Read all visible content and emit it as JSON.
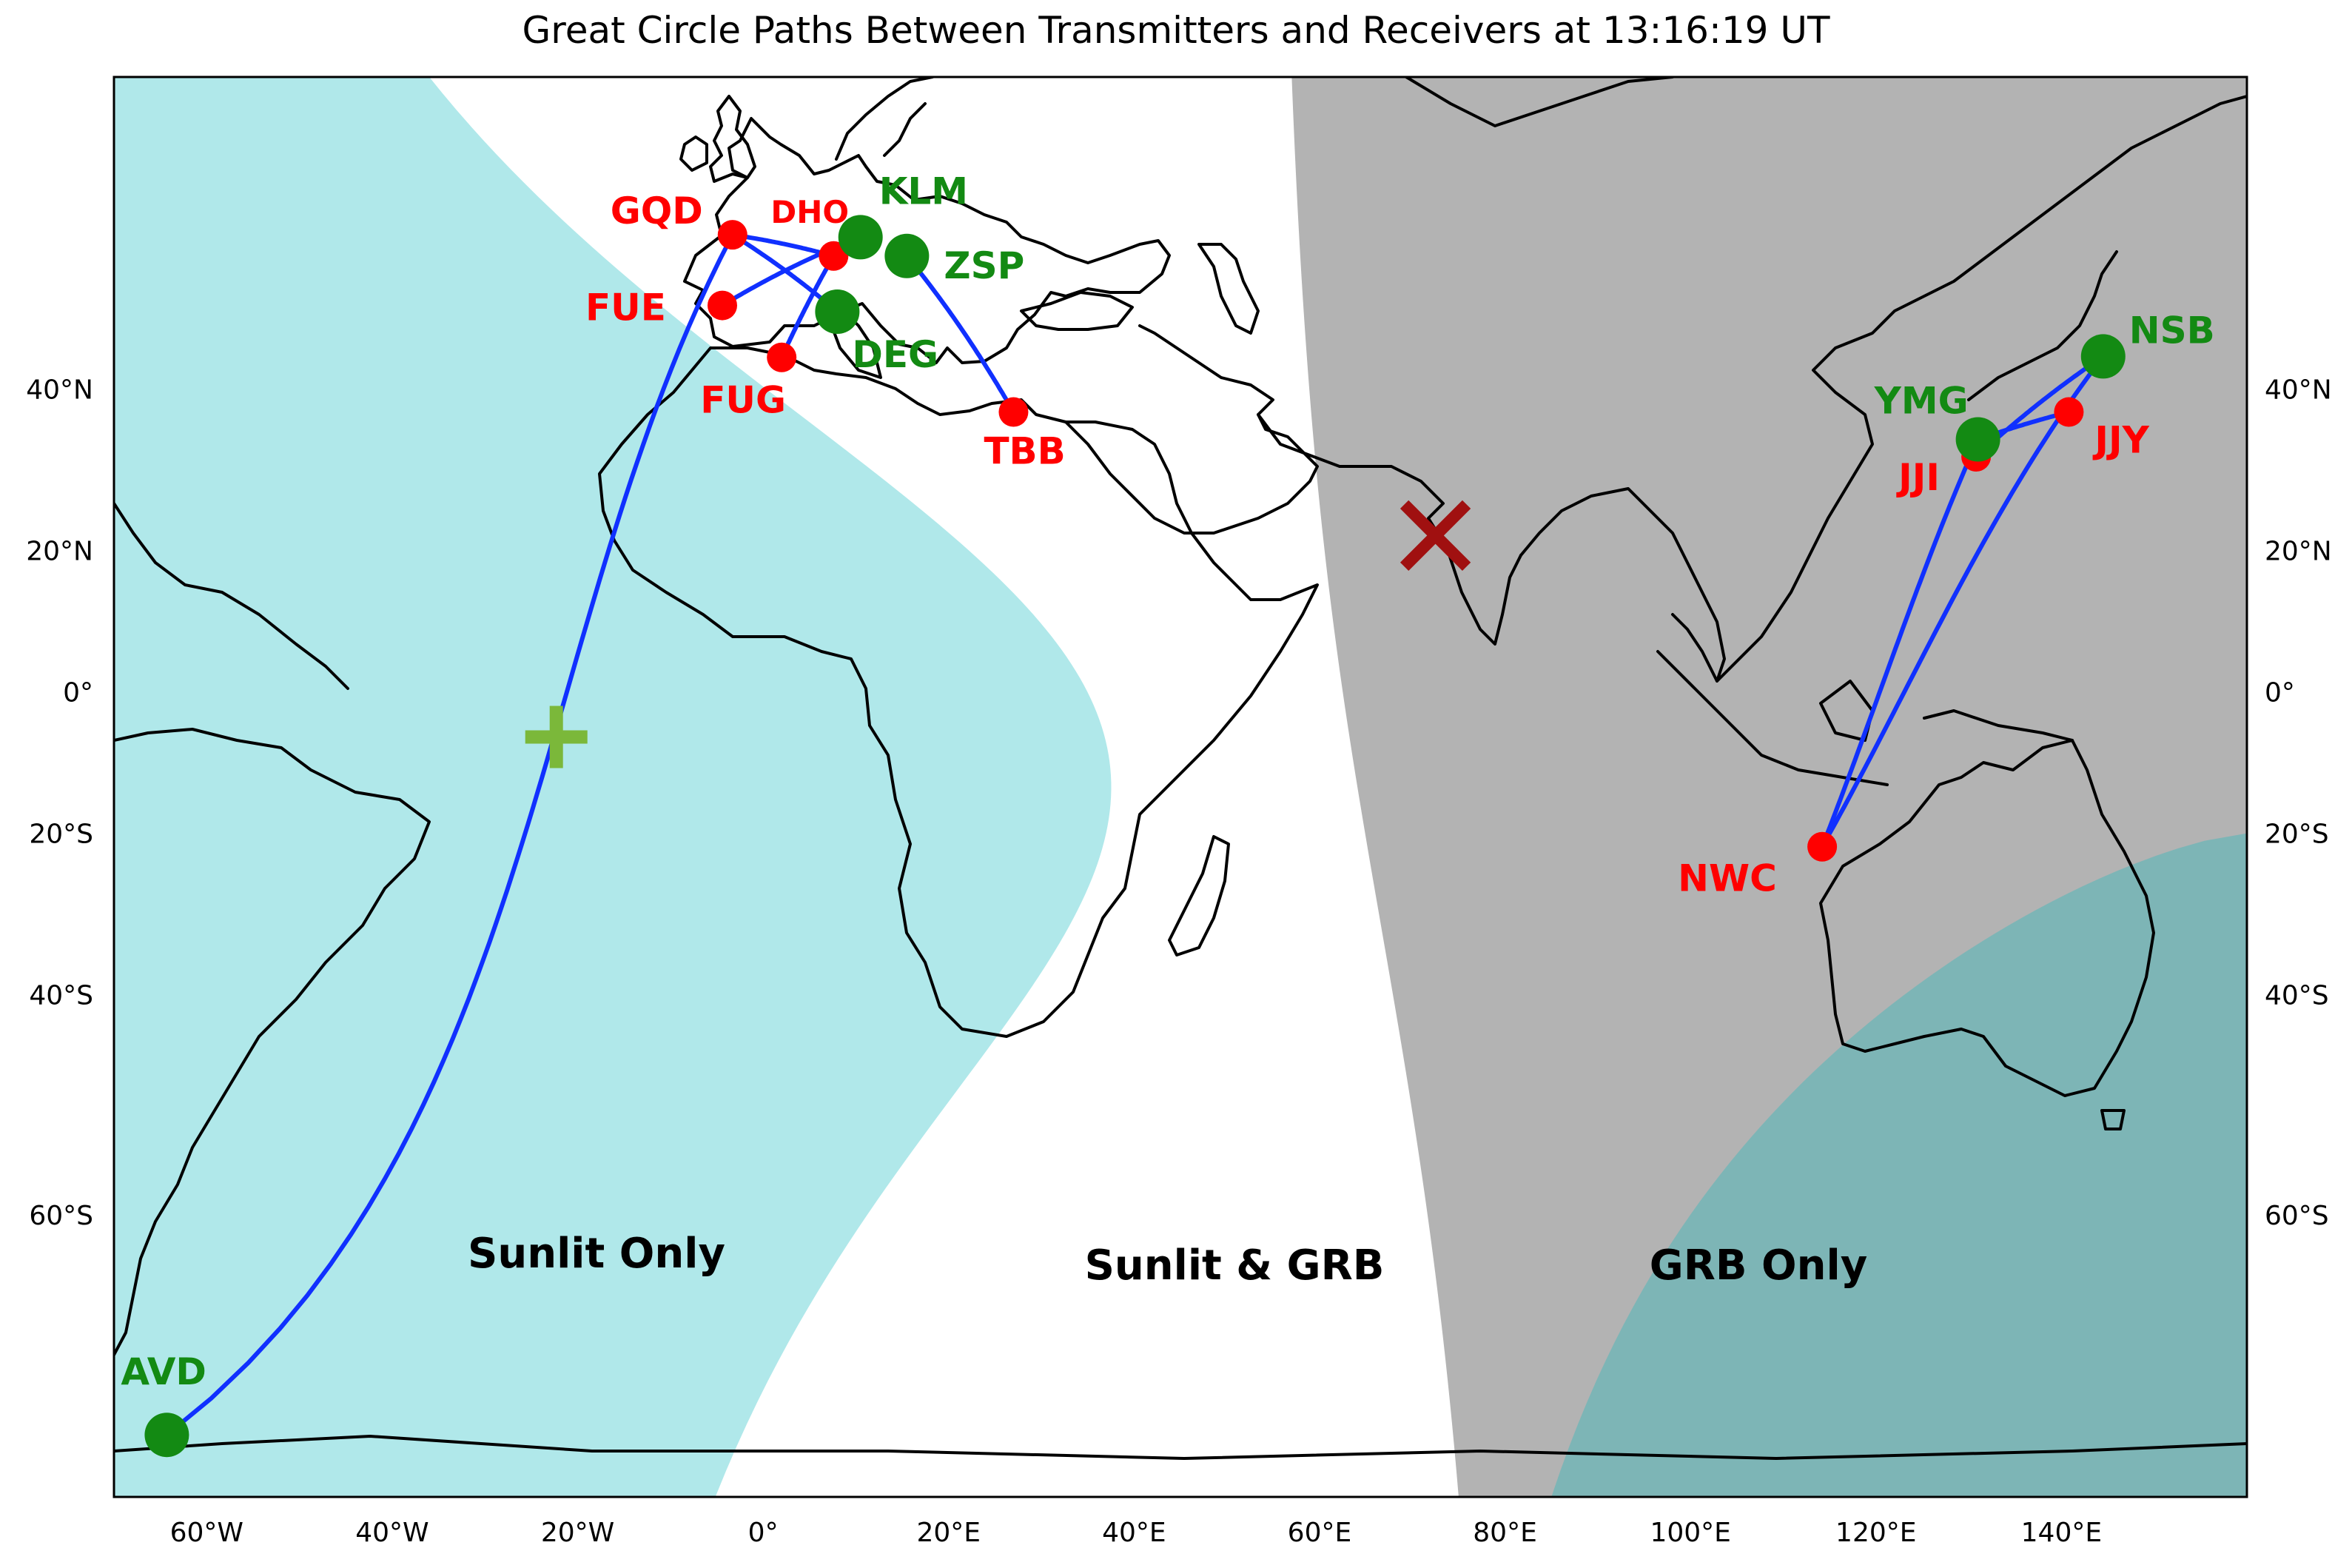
{
  "title": "Great Circle Paths Between Transmitters and Receivers  at 13:16:19 UT",
  "map": {
    "lon_range": [
      -70,
      160
    ],
    "lat_range": [
      -75,
      66
    ],
    "colors": {
      "sunlit": "#b0e8ea",
      "grb": "#b3b3b3",
      "overlap": "#7db5b6",
      "transmitter": "#ff0000",
      "receiver": "#138a13",
      "path": "#1030ff",
      "marker_plus": "#7bb83a",
      "marker_x": "#a01010"
    }
  },
  "lon_ticks": [
    "60°W",
    "40°W",
    "20°W",
    "0°",
    "20°E",
    "40°E",
    "60°E",
    "80°E",
    "100°E",
    "120°E",
    "140°E"
  ],
  "lon_tick_values": [
    -60,
    -40,
    -20,
    0,
    20,
    40,
    60,
    80,
    100,
    120,
    140
  ],
  "lat_ticks": [
    "40°N",
    "20°N",
    "0°",
    "20°S",
    "40°S",
    "60°S"
  ],
  "lat_tick_values": [
    40,
    20,
    0,
    -20,
    -40,
    -60
  ],
  "regions": {
    "sunlit_only": "Sunlit Only",
    "sunlit_grb": "Sunlit & GRB",
    "grb_only": "GRB Only"
  },
  "transmitters": [
    {
      "code": "GQD",
      "lon": -3.3,
      "lat": 54.9
    },
    {
      "code": "DHO",
      "lon": 7.6,
      "lat": 53.1
    },
    {
      "code": "FUE",
      "lon": -4.4,
      "lat": 48.6
    },
    {
      "code": "FUG",
      "lon": 2.0,
      "lat": 43.4
    },
    {
      "code": "TBB",
      "lon": 27.0,
      "lat": 37.4
    },
    {
      "code": "JJI",
      "lon": 130.8,
      "lat": 32.1
    },
    {
      "code": "JJY",
      "lon": 140.8,
      "lat": 37.4
    },
    {
      "code": "NWC",
      "lon": 114.2,
      "lat": -21.8
    }
  ],
  "receivers": [
    {
      "code": "KLM",
      "lon": 10.5,
      "lat": 54.7
    },
    {
      "code": "ZSP",
      "lon": 15.5,
      "lat": 53.1
    },
    {
      "code": "DEG",
      "lon": 8.0,
      "lat": 48.0
    },
    {
      "code": "NSB",
      "lon": 144.5,
      "lat": 43.5
    },
    {
      "code": "YMG",
      "lon": 131.0,
      "lat": 34.2
    },
    {
      "code": "AVD",
      "lon": -64.3,
      "lat": -72.5
    }
  ],
  "paths": [
    [
      "GQD",
      "DEG"
    ],
    [
      "FUE",
      "KLM"
    ],
    [
      "DHO",
      "GQD"
    ],
    [
      "FUG",
      "DHO"
    ],
    [
      "TBB",
      "ZSP"
    ],
    [
      "GQD",
      "AVD"
    ],
    [
      "NWC",
      "NSB"
    ],
    [
      "NWC",
      "YMG"
    ],
    [
      "JJI",
      "NSB"
    ],
    [
      "JJY",
      "YMG"
    ],
    [
      "JJI",
      "YMG"
    ]
  ],
  "markers": {
    "plus": {
      "lon": -22.3,
      "lat": -6.5
    },
    "x": {
      "lon": 72.5,
      "lat": 22.0
    }
  }
}
